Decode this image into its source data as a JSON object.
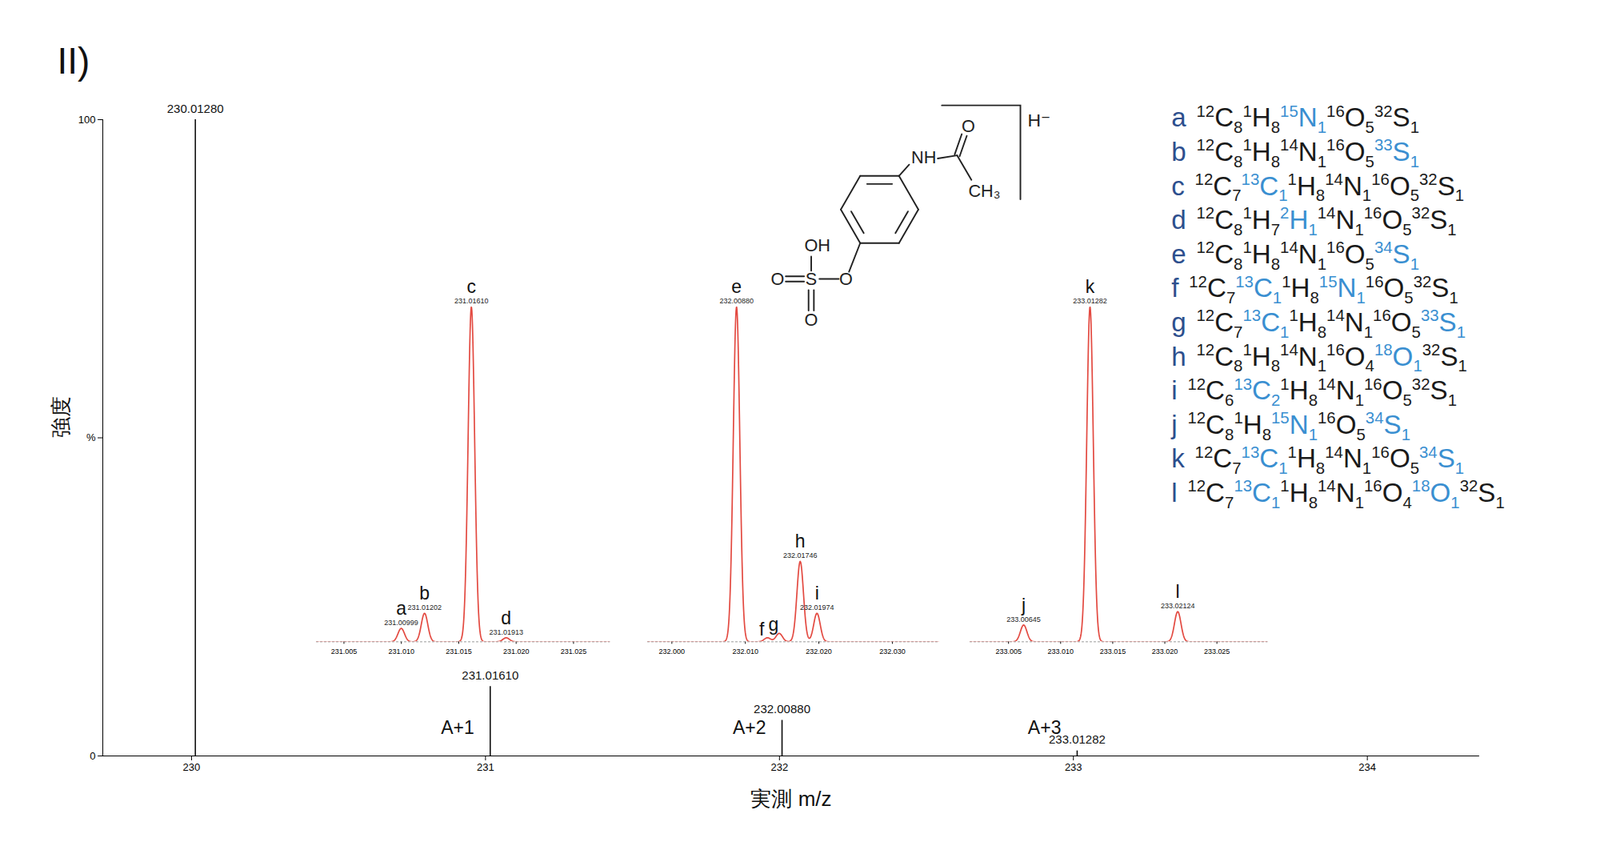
{
  "panel_label": "II)",
  "chart_data": [
    {
      "type": "spectrum",
      "x_label": "実測 m/z",
      "y_label": "強度",
      "xlim": [
        229.698,
        234.382
      ],
      "xticks": [
        230,
        231,
        232,
        233,
        234
      ],
      "ylim": [
        0,
        100
      ],
      "yticks": [
        0,
        {
          "value": 50,
          "label": "%"
        },
        100
      ],
      "color": "#000000",
      "x": [
        230.0128,
        231.0161,
        232.0088,
        233.01282
      ],
      "x_labels": [
        "230.01280",
        "231.01610",
        "232.00880",
        "233.01282"
      ],
      "values": [
        100,
        10.9,
        5.6,
        0.8
      ],
      "annotations": [
        null,
        "A+1",
        "A+2",
        "A+3"
      ]
    },
    {
      "type": "profile",
      "xlim": [
        231.0026,
        231.0282
      ],
      "xticks": [
        231.005,
        {
          "value": 231.01,
          "label": "231.010"
        },
        231.015,
        {
          "value": 231.02,
          "label": "231.020"
        },
        231.025
      ],
      "ylim": [
        0,
        100
      ],
      "tick_labels": "x",
      "color": "#e34a41",
      "names": [
        "a",
        "b",
        "c",
        "d"
      ],
      "x": [
        231.00999,
        231.01202,
        231.0161,
        231.01913
      ],
      "x_labels": [
        "231.00999",
        "231.01202",
        "231.01610",
        "231.01913"
      ],
      "values": [
        4,
        8.5,
        100,
        1.2
      ]
    },
    {
      "type": "profile",
      "xlim": [
        231.9967,
        232.0364
      ],
      "xticks": [
        {
          "value": 232,
          "label": "232.000"
        },
        {
          "value": 232.01,
          "label": "232.010"
        },
        {
          "value": 232.02,
          "label": "232.020"
        },
        {
          "value": 232.03,
          "label": "232.030"
        }
      ],
      "ylim": [
        0,
        100
      ],
      "tick_labels": "x",
      "color": "#e34a41",
      "names": [
        "e",
        "f",
        "g",
        "h",
        "i"
      ],
      "x": [
        232.0088,
        232.013,
        232.0146,
        232.01746,
        232.01974
      ],
      "x_labels": [
        "232.00880",
        null,
        null,
        "232.01746",
        "232.01974"
      ],
      "values": [
        100,
        1.2,
        2.5,
        24,
        8.5
      ]
    },
    {
      "type": "profile",
      "xlim": [
        233.0013,
        233.0299
      ],
      "xticks": [
        233.005,
        {
          "value": 233.01,
          "label": "233.010"
        },
        233.015,
        {
          "value": 233.02,
          "label": "233.020"
        },
        233.025
      ],
      "ylim": [
        0,
        100
      ],
      "tick_labels": "x",
      "color": "#e34a41",
      "names": [
        "j",
        "k",
        "l"
      ],
      "x": [
        233.00645,
        233.01282,
        233.02124
      ],
      "x_labels": [
        "233.00645",
        "233.01282",
        "233.02124"
      ],
      "values": [
        5,
        100,
        9
      ]
    }
  ],
  "structure": {
    "atoms": [
      "NH",
      "O",
      "CH₃",
      "OH",
      "O",
      "S",
      "O",
      "O"
    ],
    "charge": "H⁻"
  },
  "formulas": [
    {
      "letter": "a",
      "atoms": [
        [
          "12",
          "C",
          "8"
        ],
        [
          "1",
          "H",
          "8"
        ],
        [
          "15",
          "N",
          "1",
          true
        ],
        [
          "16",
          "O",
          "5"
        ],
        [
          "32",
          "S",
          "1"
        ]
      ]
    },
    {
      "letter": "b",
      "atoms": [
        [
          "12",
          "C",
          "8"
        ],
        [
          "1",
          "H",
          "8"
        ],
        [
          "14",
          "N",
          "1"
        ],
        [
          "16",
          "O",
          "5"
        ],
        [
          "33",
          "S",
          "1",
          true
        ]
      ]
    },
    {
      "letter": "c",
      "atoms": [
        [
          "12",
          "C",
          "7"
        ],
        [
          "13",
          "C",
          "1",
          true
        ],
        [
          "1",
          "H",
          "8"
        ],
        [
          "14",
          "N",
          "1"
        ],
        [
          "16",
          "O",
          "5"
        ],
        [
          "32",
          "S",
          "1"
        ]
      ]
    },
    {
      "letter": "d",
      "atoms": [
        [
          "12",
          "C",
          "8"
        ],
        [
          "1",
          "H",
          "7"
        ],
        [
          "2",
          "H",
          "1",
          true
        ],
        [
          "14",
          "N",
          "1"
        ],
        [
          "16",
          "O",
          "5"
        ],
        [
          "32",
          "S",
          "1"
        ]
      ]
    },
    {
      "letter": "e",
      "atoms": [
        [
          "12",
          "C",
          "8"
        ],
        [
          "1",
          "H",
          "8"
        ],
        [
          "14",
          "N",
          "1"
        ],
        [
          "16",
          "O",
          "5"
        ],
        [
          "34",
          "S",
          "1",
          true
        ]
      ]
    },
    {
      "letter": "f",
      "atoms": [
        [
          "12",
          "C",
          "7"
        ],
        [
          "13",
          "C",
          "1",
          true
        ],
        [
          "1",
          "H",
          "8"
        ],
        [
          "15",
          "N",
          "1",
          true
        ],
        [
          "16",
          "O",
          "5"
        ],
        [
          "32",
          "S",
          "1"
        ]
      ]
    },
    {
      "letter": "g",
      "atoms": [
        [
          "12",
          "C",
          "7"
        ],
        [
          "13",
          "C",
          "1",
          true
        ],
        [
          "1",
          "H",
          "8"
        ],
        [
          "14",
          "N",
          "1"
        ],
        [
          "16",
          "O",
          "5"
        ],
        [
          "33",
          "S",
          "1",
          true
        ]
      ]
    },
    {
      "letter": "h",
      "atoms": [
        [
          "12",
          "C",
          "8"
        ],
        [
          "1",
          "H",
          "8"
        ],
        [
          "14",
          "N",
          "1"
        ],
        [
          "16",
          "O",
          "4"
        ],
        [
          "18",
          "O",
          "1",
          true
        ],
        [
          "32",
          "S",
          "1"
        ]
      ]
    },
    {
      "letter": "i",
      "atoms": [
        [
          "12",
          "C",
          "6"
        ],
        [
          "13",
          "C",
          "2",
          true
        ],
        [
          "1",
          "H",
          "8"
        ],
        [
          "14",
          "N",
          "1"
        ],
        [
          "16",
          "O",
          "5"
        ],
        [
          "32",
          "S",
          "1"
        ]
      ]
    },
    {
      "letter": "j",
      "atoms": [
        [
          "12",
          "C",
          "8"
        ],
        [
          "1",
          "H",
          "8"
        ],
        [
          "15",
          "N",
          "1",
          true
        ],
        [
          "16",
          "O",
          "5"
        ],
        [
          "34",
          "S",
          "1",
          true
        ]
      ]
    },
    {
      "letter": "k",
      "atoms": [
        [
          "12",
          "C",
          "7"
        ],
        [
          "13",
          "C",
          "1",
          true
        ],
        [
          "1",
          "H",
          "8"
        ],
        [
          "14",
          "N",
          "1"
        ],
        [
          "16",
          "O",
          "5"
        ],
        [
          "34",
          "S",
          "1",
          true
        ]
      ]
    },
    {
      "letter": "l",
      "atoms": [
        [
          "12",
          "C",
          "7"
        ],
        [
          "13",
          "C",
          "1",
          true
        ],
        [
          "1",
          "H",
          "8"
        ],
        [
          "14",
          "N",
          "1"
        ],
        [
          "16",
          "O",
          "4"
        ],
        [
          "18",
          "O",
          "1",
          true
        ],
        [
          "32",
          "S",
          "1"
        ]
      ]
    }
  ]
}
